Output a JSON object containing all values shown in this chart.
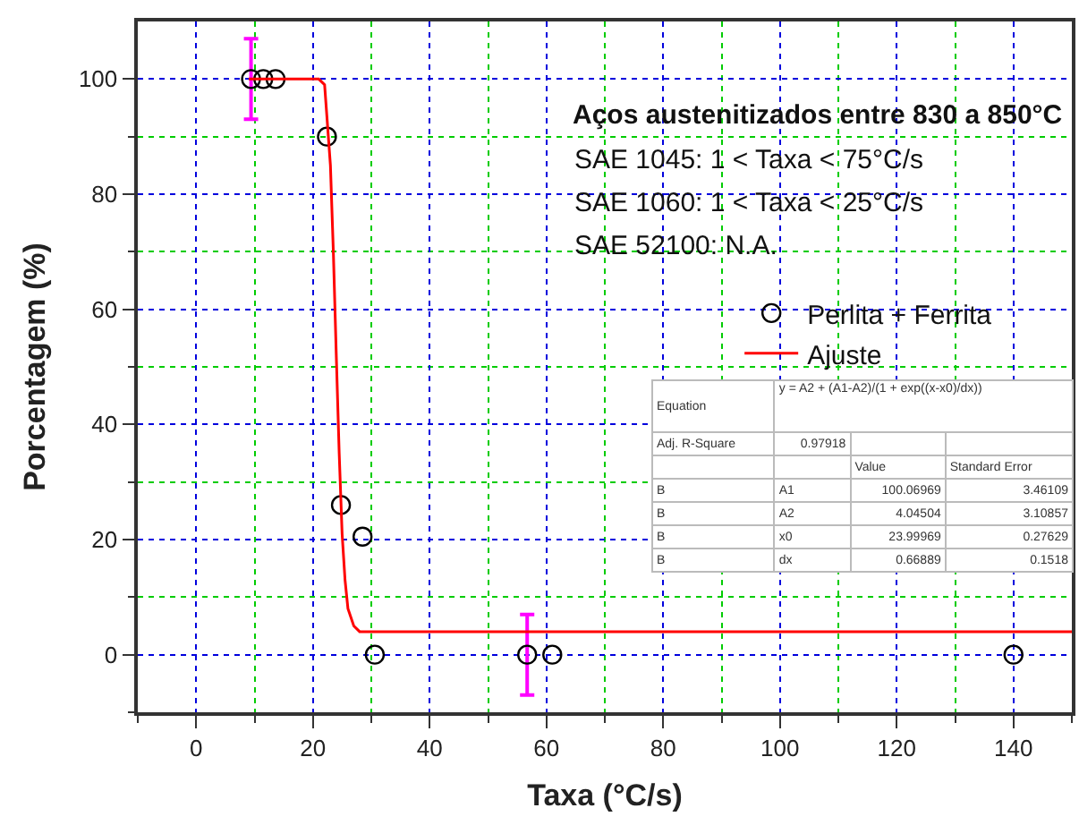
{
  "chart_data": {
    "type": "scatter",
    "xlabel": "Taxa (°C/s)",
    "ylabel": "Porcentagem (%)",
    "xlim": [
      -10,
      150
    ],
    "xticks": [
      {
        "value": -10,
        "label": null
      },
      0,
      {
        "value": 10,
        "label": null
      },
      20,
      {
        "value": 30,
        "label": null
      },
      40,
      {
        "value": 50,
        "label": null
      },
      60,
      {
        "value": 70,
        "label": null
      },
      80,
      {
        "value": 90,
        "label": null
      },
      100,
      {
        "value": 110,
        "label": null
      },
      120,
      {
        "value": 130,
        "label": null
      },
      140,
      {
        "value": 150,
        "label": null
      }
    ],
    "ylim": [
      -10,
      110
    ],
    "yticks": [
      {
        "value": -10,
        "label": null
      },
      0,
      {
        "value": 10,
        "label": null
      },
      20,
      {
        "value": 30,
        "label": null
      },
      40,
      {
        "value": 50,
        "label": null
      },
      60,
      {
        "value": 70,
        "label": null
      },
      80,
      {
        "value": 90,
        "label": null
      },
      100
    ],
    "grid": true,
    "legend": "right",
    "series": [
      {
        "name": "Perlita + Ferrita",
        "marker": "circle",
        "color": "#000000",
        "x": [
          9.4,
          11.5,
          13.6,
          22.4,
          24.8,
          28.5,
          30.6,
          56.7,
          61,
          140
        ],
        "values": [
          100,
          100,
          100,
          90,
          26,
          20.5,
          0,
          0,
          0,
          0
        ],
        "errors": [
          7,
          null,
          null,
          null,
          null,
          null,
          null,
          7,
          null,
          null
        ]
      },
      {
        "name": "Ajuste",
        "type": "line",
        "color": "#ff0000",
        "x": [
          9,
          21,
          22,
          23,
          23.5,
          24,
          24.5,
          25,
          25.5,
          26,
          27,
          28,
          150
        ],
        "values": [
          100,
          100,
          99,
          85,
          70,
          52,
          35,
          21,
          13,
          8,
          5,
          4,
          4
        ]
      }
    ],
    "annotations": [
      "Aços austenitizados entre 830 a 850°C",
      "SAE 1045: 1 < Taxa < 75°C/s",
      "SAE 1060: 1 < Taxa < 25°C/s",
      "SAE 52100: N.A.",
      "Equation",
      "y = A2 + (A1-A2)/(1 + exp((x-x0)/dx))",
      "Adj. R-Square",
      "0.97918",
      "Value",
      "Standard Error",
      "B",
      "A1",
      "100.06969",
      "3.46109",
      "B",
      "A2",
      "4.04504",
      "3.10857",
      "B",
      "x0",
      "23.99969",
      "0.27629",
      "B",
      "dx",
      "0.66889",
      "0.1518"
    ]
  }
}
